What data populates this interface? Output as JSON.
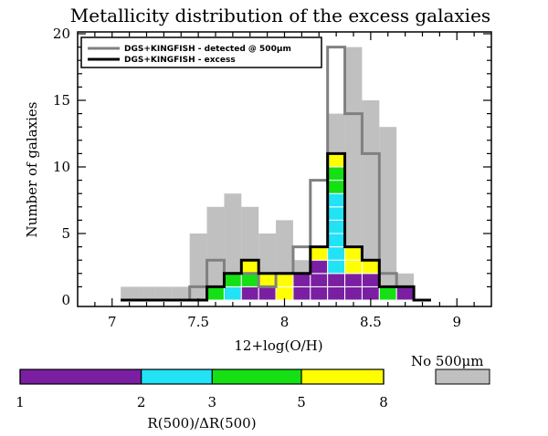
{
  "chart_data": {
    "type": "bar",
    "title": "Metallicity distribution of the excess galaxies",
    "xlabel": "12+log(O/H)",
    "ylabel": "Number of galaxies",
    "xlim": [
      6.8,
      9.2
    ],
    "ylim": [
      0,
      20
    ],
    "bin_width": 0.1,
    "xticks": [
      7,
      7.5,
      8,
      8.5,
      9
    ],
    "xtick_labels": [
      "7",
      "7.5",
      "8",
      "8.5",
      "9"
    ],
    "yticks": [
      0,
      5,
      10,
      15,
      20
    ],
    "ytick_labels": [
      "0",
      "5",
      "10",
      "15",
      "20"
    ],
    "legend": [
      {
        "label": "DGS+KINGFISH - detected @ 500μm",
        "color": "#808080"
      },
      {
        "label": "DGS+KINGFISH - excess",
        "color": "#000000"
      }
    ],
    "bin_lefts": [
      7.05,
      7.15,
      7.25,
      7.35,
      7.45,
      7.55,
      7.65,
      7.75,
      7.85,
      7.95,
      8.05,
      8.15,
      8.25,
      8.35,
      8.45,
      8.55,
      8.65,
      8.75
    ],
    "series": [
      {
        "name": "No 500μm",
        "style": "filled-gray",
        "color": "#c0c0c0",
        "values": [
          1,
          1,
          1,
          1,
          5,
          7,
          8,
          7,
          5,
          6,
          3,
          2,
          14,
          19,
          15,
          13,
          2,
          0
        ]
      },
      {
        "name": "DGS+KINGFISH - detected @ 500μm",
        "style": "step-gray",
        "color": "#808080",
        "values": [
          0,
          0,
          0,
          0,
          1,
          3,
          2,
          2,
          1,
          2,
          4,
          9,
          19,
          14,
          11,
          2,
          1,
          0
        ]
      },
      {
        "name": "DGS+KINGFISH - excess",
        "style": "step-black",
        "color": "#000000",
        "values": [
          0,
          0,
          0,
          0,
          0,
          1,
          2,
          3,
          2,
          2,
          2,
          4,
          11,
          4,
          3,
          1,
          1,
          0
        ]
      }
    ],
    "excess_stacks": [
      [],
      [],
      [],
      [],
      [],
      [
        "green"
      ],
      [
        "cyan",
        "green"
      ],
      [
        "purple",
        "green",
        "yellow"
      ],
      [
        "purple",
        "yellow"
      ],
      [
        "yellow",
        "yellow"
      ],
      [
        "purple",
        "purple"
      ],
      [
        "purple",
        "purple",
        "purple",
        "yellow"
      ],
      [
        "purple",
        "purple",
        "cyan",
        "cyan",
        "cyan",
        "cyan",
        "cyan",
        "cyan",
        "green",
        "green",
        "yellow"
      ],
      [
        "purple",
        "purple",
        "yellow",
        "yellow"
      ],
      [
        "purple",
        "purple",
        "yellow"
      ],
      [
        "green"
      ],
      [
        "purple"
      ],
      []
    ],
    "colorbar": {
      "label": "R(500)/ΔR(500)",
      "segments": [
        {
          "key": "purple",
          "color": "#7a1fa2"
        },
        {
          "key": "cyan",
          "color": "#22e3f5"
        },
        {
          "key": "green",
          "color": "#14e014"
        },
        {
          "key": "yellow",
          "color": "#ffff00"
        }
      ],
      "ticks": [
        {
          "value": 1,
          "label": "1"
        },
        {
          "value": 2,
          "label": "2"
        },
        {
          "value": 3,
          "label": "3"
        },
        {
          "value": 5,
          "label": "5"
        },
        {
          "value": 8,
          "label": "8"
        }
      ]
    },
    "no500_legend": {
      "label": "No 500μm",
      "color": "#c0c0c0"
    }
  }
}
